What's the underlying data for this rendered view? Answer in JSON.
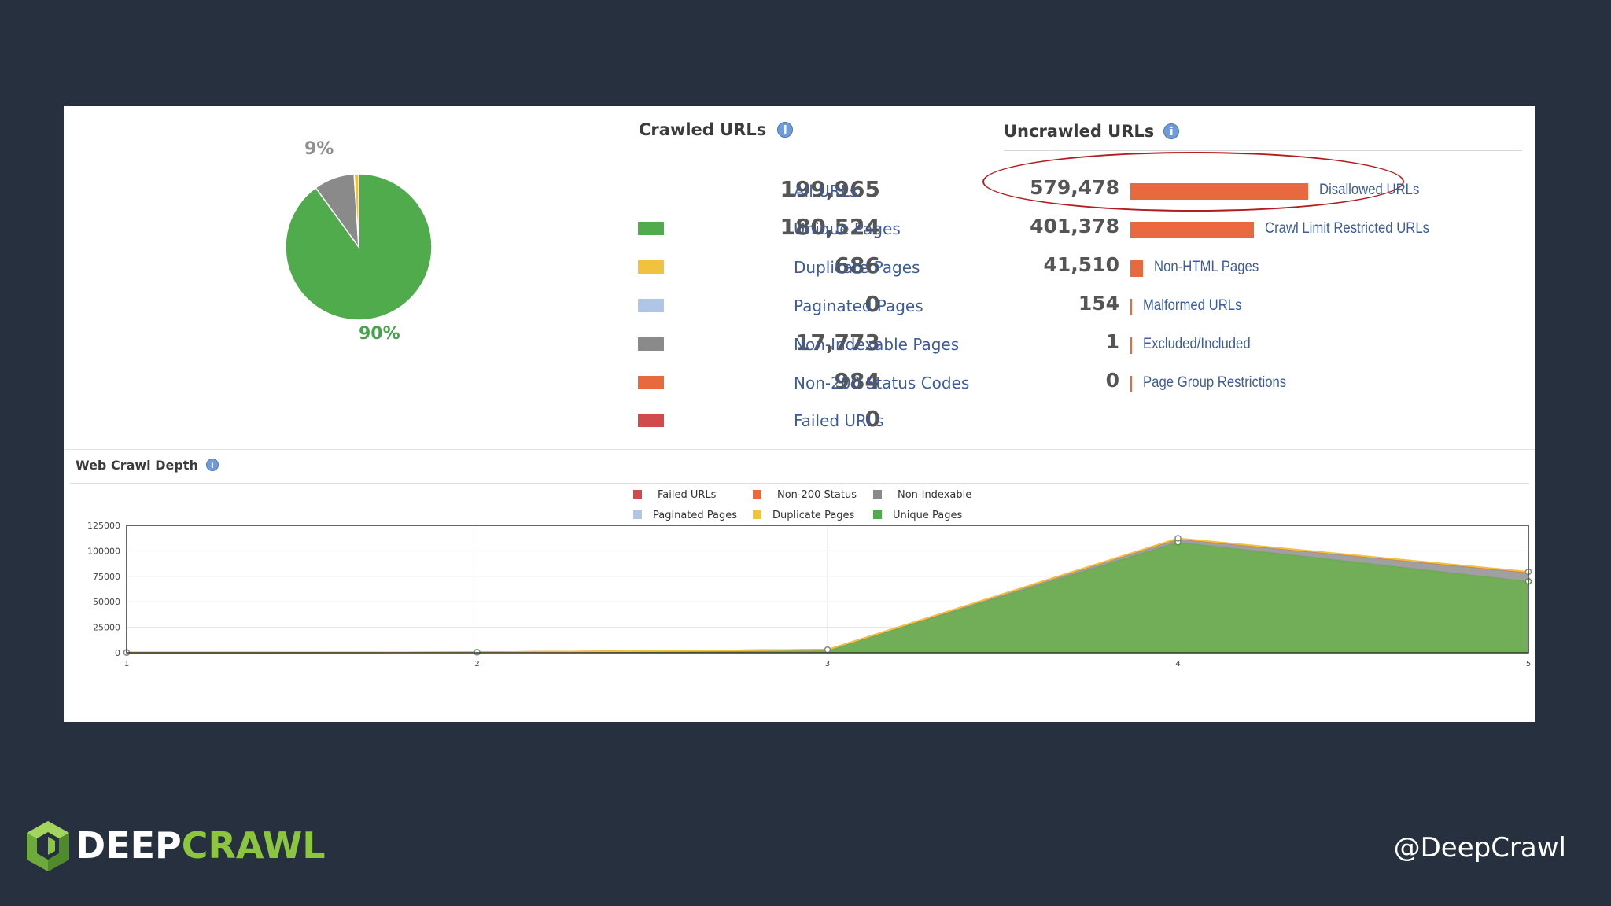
{
  "pie": {
    "slices": [
      {
        "label": "90%",
        "value": 90,
        "color": "#4fab4c"
      },
      {
        "label": "9%",
        "value": 9,
        "color": "#8a8a8a"
      },
      {
        "label": "",
        "value": 1,
        "color": "#f0c240"
      }
    ]
  },
  "crawled": {
    "title": "Crawled URLs",
    "info": "i",
    "rows": [
      {
        "value": "199,965",
        "label": "All URLs",
        "color": ""
      },
      {
        "value": "180,524",
        "label": "Unique Pages",
        "color": "#4fab4c"
      },
      {
        "value": "686",
        "label": "Duplicate Pages",
        "color": "#f0c240"
      },
      {
        "value": "0",
        "label": "Paginated Pages",
        "color": "#b0c6e6"
      },
      {
        "value": "17,773",
        "label": "Non-Indexable Pages",
        "color": "#8a8a8a"
      },
      {
        "value": "984",
        "label": "Non-200 Status Codes",
        "color": "#e8693e"
      },
      {
        "value": "0",
        "label": "Failed URLs",
        "color": "#d24b4b"
      }
    ]
  },
  "uncrawled": {
    "title": "Uncrawled URLs",
    "info": "i",
    "bar_color": "#e8693e",
    "rows": [
      {
        "value": "579,478",
        "label": "Disallowed URLs",
        "fraction": 1.0
      },
      {
        "value": "401,378",
        "label": "Crawl Limit Restricted URLs",
        "fraction": 0.693
      },
      {
        "value": "41,510",
        "label": "Non-HTML Pages",
        "fraction": 0.072
      },
      {
        "value": "154",
        "label": "Malformed URLs",
        "fraction": 0.0003
      },
      {
        "value": "1",
        "label": "Excluded/Included",
        "fraction": 2e-06
      },
      {
        "value": "0",
        "label": "Page Group Restrictions",
        "fraction": 0
      }
    ]
  },
  "depth": {
    "title": "Web Crawl Depth",
    "info": "i",
    "legend": [
      {
        "label": "Failed URLs",
        "color": "#d24b4b"
      },
      {
        "label": "Non-200 Status",
        "color": "#e8693e"
      },
      {
        "label": "Non-Indexable",
        "color": "#8a8a8a"
      },
      {
        "label": "Paginated Pages",
        "color": "#b0c6e6"
      },
      {
        "label": "Duplicate Pages",
        "color": "#f0c240"
      },
      {
        "label": "Unique Pages",
        "color": "#4fab4c"
      }
    ]
  },
  "chart_data": {
    "type": "area",
    "title": "Web Crawl Depth",
    "x": [
      1,
      2,
      3,
      4,
      5
    ],
    "ylim": [
      0,
      125000
    ],
    "yticks": [
      0,
      25000,
      50000,
      75000,
      100000,
      125000
    ],
    "grid": true,
    "legend_position": "top",
    "series": [
      {
        "name": "Unique Pages",
        "color": "#6aaa4e",
        "values": [
          150,
          450,
          2800,
          108500,
          70000
        ]
      },
      {
        "name": "Non-Indexable",
        "color": "#9b9b9b",
        "values": [
          0,
          30,
          150,
          3200,
          8500
        ]
      },
      {
        "name": "Non-200 Status",
        "color": "#e8693e",
        "values": [
          0,
          5,
          20,
          300,
          600
        ]
      },
      {
        "name": "Duplicate Pages",
        "color": "#f0c240",
        "values": [
          0,
          0,
          5,
          300,
          350
        ]
      }
    ]
  },
  "footer": {
    "brand_deep": "DEEP",
    "brand_crawl": "CRAWL",
    "handle": "@DeepCrawl"
  }
}
